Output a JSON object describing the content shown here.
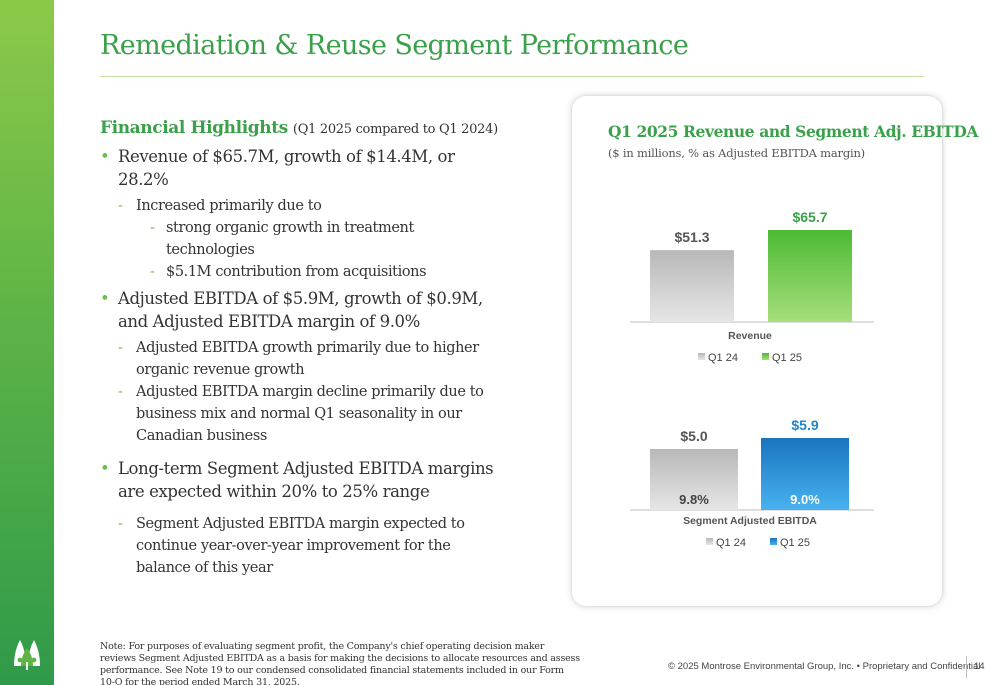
{
  "title": "Remediation & Reuse Segment Performance",
  "highlights": {
    "heading": "Financial Highlights",
    "heading_note": "(Q1 2025 compared to Q1 2024)",
    "revenue_bullet": "Revenue of $65.7M, growth of $14.4M, or 28.2%",
    "revenue_sub": "Increased primarily due to",
    "revenue_reason_1_l1": "strong organic growth in treatment",
    "revenue_reason_1_l2": "technologies",
    "revenue_reason_2": "$5.1M contribution from acquisitions",
    "ebitda_bullet_l1": "Adjusted EBITDA of $5.9M, growth of $0.9M,",
    "ebitda_bullet_l2": "and Adjusted EBITDA margin of 9.0%",
    "ebitda_sub1_l1": "Adjusted EBITDA growth primarily due to higher",
    "ebitda_sub1_l2": "organic revenue growth",
    "ebitda_sub2_l1": "Adjusted EBITDA margin decline primarily due to",
    "ebitda_sub2_l2": "business mix and normal Q1 seasonality in our",
    "ebitda_sub2_l3": "Canadian business",
    "longterm_bullet_l1": "Long-term Segment Adjusted EBITDA margins",
    "longterm_bullet_l2": "are expected within 20% to 25% range",
    "longterm_sub_l1": "Segment Adjusted EBITDA margin expected to",
    "longterm_sub_l2": "continue year-over-year improvement for the",
    "longterm_sub_l3": "balance of this year"
  },
  "card": {
    "title": "Q1 2025 Revenue and Segment Adj. EBITDA",
    "subtitle": "($ in millions, % as Adjusted EBITDA margin)"
  },
  "chart_data": [
    {
      "type": "bar",
      "categories": [
        "Revenue"
      ],
      "series": [
        {
          "name": "Q1 24",
          "values": [
            51.3
          ],
          "labels": [
            "$51.3"
          ],
          "color": "#c4c4c4"
        },
        {
          "name": "Q1 25",
          "values": [
            65.7
          ],
          "labels": [
            "$65.7"
          ],
          "color": "#6cc83e"
        }
      ],
      "xlabel": "Revenue",
      "legend": "bottom"
    },
    {
      "type": "bar",
      "categories": [
        "Segment Adjusted EBITDA"
      ],
      "series": [
        {
          "name": "Q1 24",
          "values": [
            5.0
          ],
          "labels": [
            "$5.0"
          ],
          "margin": "9.8%",
          "color": "#c4c4c4"
        },
        {
          "name": "Q1 25",
          "values": [
            5.9
          ],
          "labels": [
            "$5.9"
          ],
          "margin": "9.0%",
          "color": "#1f86d0"
        }
      ],
      "xlabel": "Segment Adjusted EBITDA",
      "legend": "bottom"
    }
  ],
  "note": "Note: For purposes of evaluating segment profit, the Company's chief operating decision maker reviews Segment Adjusted EBITDA as a basis for making the decisions to allocate resources and assess performance. See Note 19 to our condensed consolidated financial statements included in our Form 10-Q for the period ended March 31, 2025.",
  "footer": "© 2025 Montrose Environmental Group, Inc. • Proprietary and Confidential",
  "page_number": "14",
  "colors": {
    "brand_green": "#3aa14a",
    "accent_green": "#6cc83e",
    "accent_blue": "#1f86d0",
    "gray": "#c4c4c4"
  },
  "icons": {
    "logo": "montrose-logo-icon"
  }
}
